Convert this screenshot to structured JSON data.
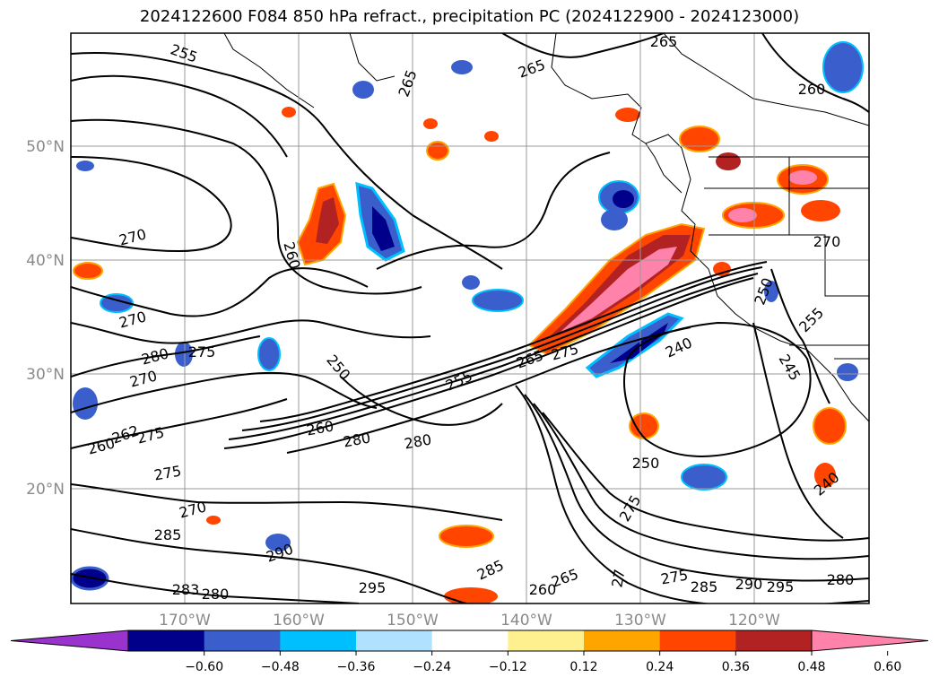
{
  "title": "2024122600 F084 850 hPa refract., precipitation PC (2024122900 - 2024123000)",
  "latitude_labels": [
    "50°N",
    "40°N",
    "30°N",
    "20°N"
  ],
  "longitude_labels": [
    "170°W",
    "160°W",
    "150°W",
    "140°W",
    "130°W",
    "120°W"
  ],
  "colorbar": {
    "tick_labels": [
      "−0.60",
      "−0.48",
      "−0.36",
      "−0.24",
      "−0.12",
      "0.12",
      "0.24",
      "0.36",
      "0.48",
      "0.60"
    ],
    "colors": [
      "#9a32cd",
      "#00008b",
      "#3a5fcd",
      "#00bfff",
      "#b0e2ff",
      "#ffffff",
      "#fff08f",
      "#ffa500",
      "#ff4500",
      "#b22222",
      "#ff82ab"
    ]
  },
  "contour_labels": [
    "255",
    "265",
    "265",
    "265",
    "260",
    "270",
    "260",
    "270",
    "280",
    "275",
    "270",
    "250",
    "255",
    "265",
    "275",
    "240",
    "245",
    "255",
    "250",
    "270",
    "260",
    "280",
    "280",
    "260",
    "262",
    "275",
    "275",
    "270",
    "285",
    "290",
    "283",
    "280",
    "295",
    "285",
    "265",
    "260",
    "275",
    "250",
    "240",
    "275",
    "285",
    "290",
    "295",
    "280",
    "27"
  ]
}
